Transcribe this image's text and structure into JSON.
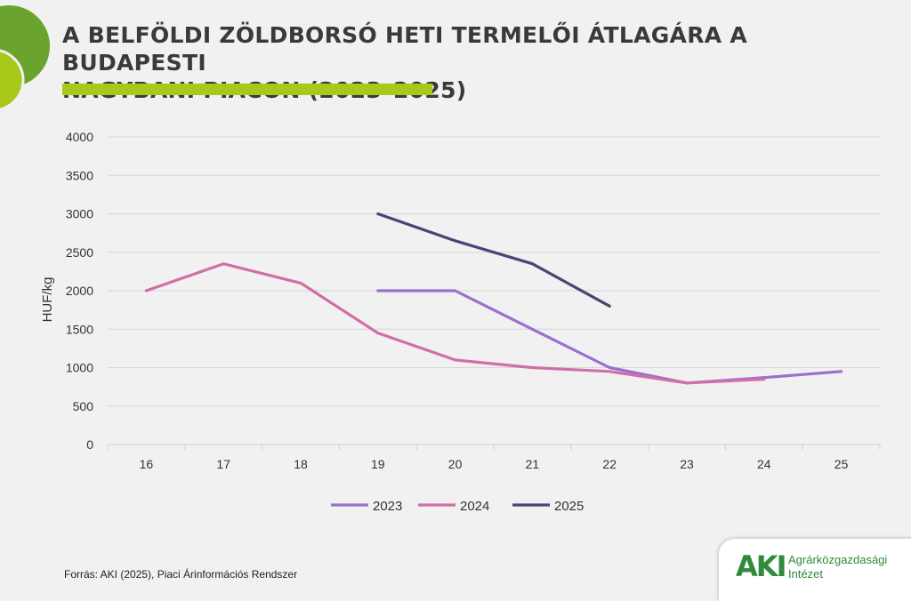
{
  "title": {
    "line1": "A BELFÖLDI ZÖLDBORSÓ HETI TERMELŐI ÁTLAGÁRA A BUDAPESTI",
    "line2": "NAGYBANI PIACON (2023–2025)"
  },
  "colors": {
    "accent": "#a8c81a",
    "circle_dark": "#6aa32e",
    "circle_light": "#a8c81a",
    "series_2023": "#9b6fd0",
    "series_2024": "#d06fa6",
    "series_2025": "#4a4573"
  },
  "chart_data": {
    "type": "line",
    "ylabel": "HUF/kg",
    "xlabel": "",
    "ylim": [
      0,
      4000
    ],
    "yticks": [
      0,
      500,
      1000,
      1500,
      2000,
      2500,
      3000,
      3500,
      4000
    ],
    "categories": [
      "16",
      "17",
      "18",
      "19",
      "20",
      "21",
      "22",
      "23",
      "24",
      "25"
    ],
    "grid": "horizontal",
    "legend": "bottom",
    "series": [
      {
        "name": "2023",
        "color": "#9b6fd0",
        "values": [
          null,
          null,
          null,
          2000,
          2000,
          1500,
          1000,
          800,
          870,
          950
        ]
      },
      {
        "name": "2024",
        "color": "#d06fa6",
        "values": [
          2000,
          2350,
          2100,
          1450,
          1100,
          1000,
          950,
          800,
          850,
          null
        ]
      },
      {
        "name": "2025",
        "color": "#4a4573",
        "values": [
          null,
          null,
          null,
          3000,
          2650,
          2350,
          1800,
          null,
          null,
          null
        ]
      }
    ]
  },
  "source": "Forrás: AKI (2025), Piaci Árinformációs Rendszer",
  "logo": {
    "mark": "AKI",
    "line1": "Agrárközgazdasági",
    "line2": "Intézet"
  }
}
